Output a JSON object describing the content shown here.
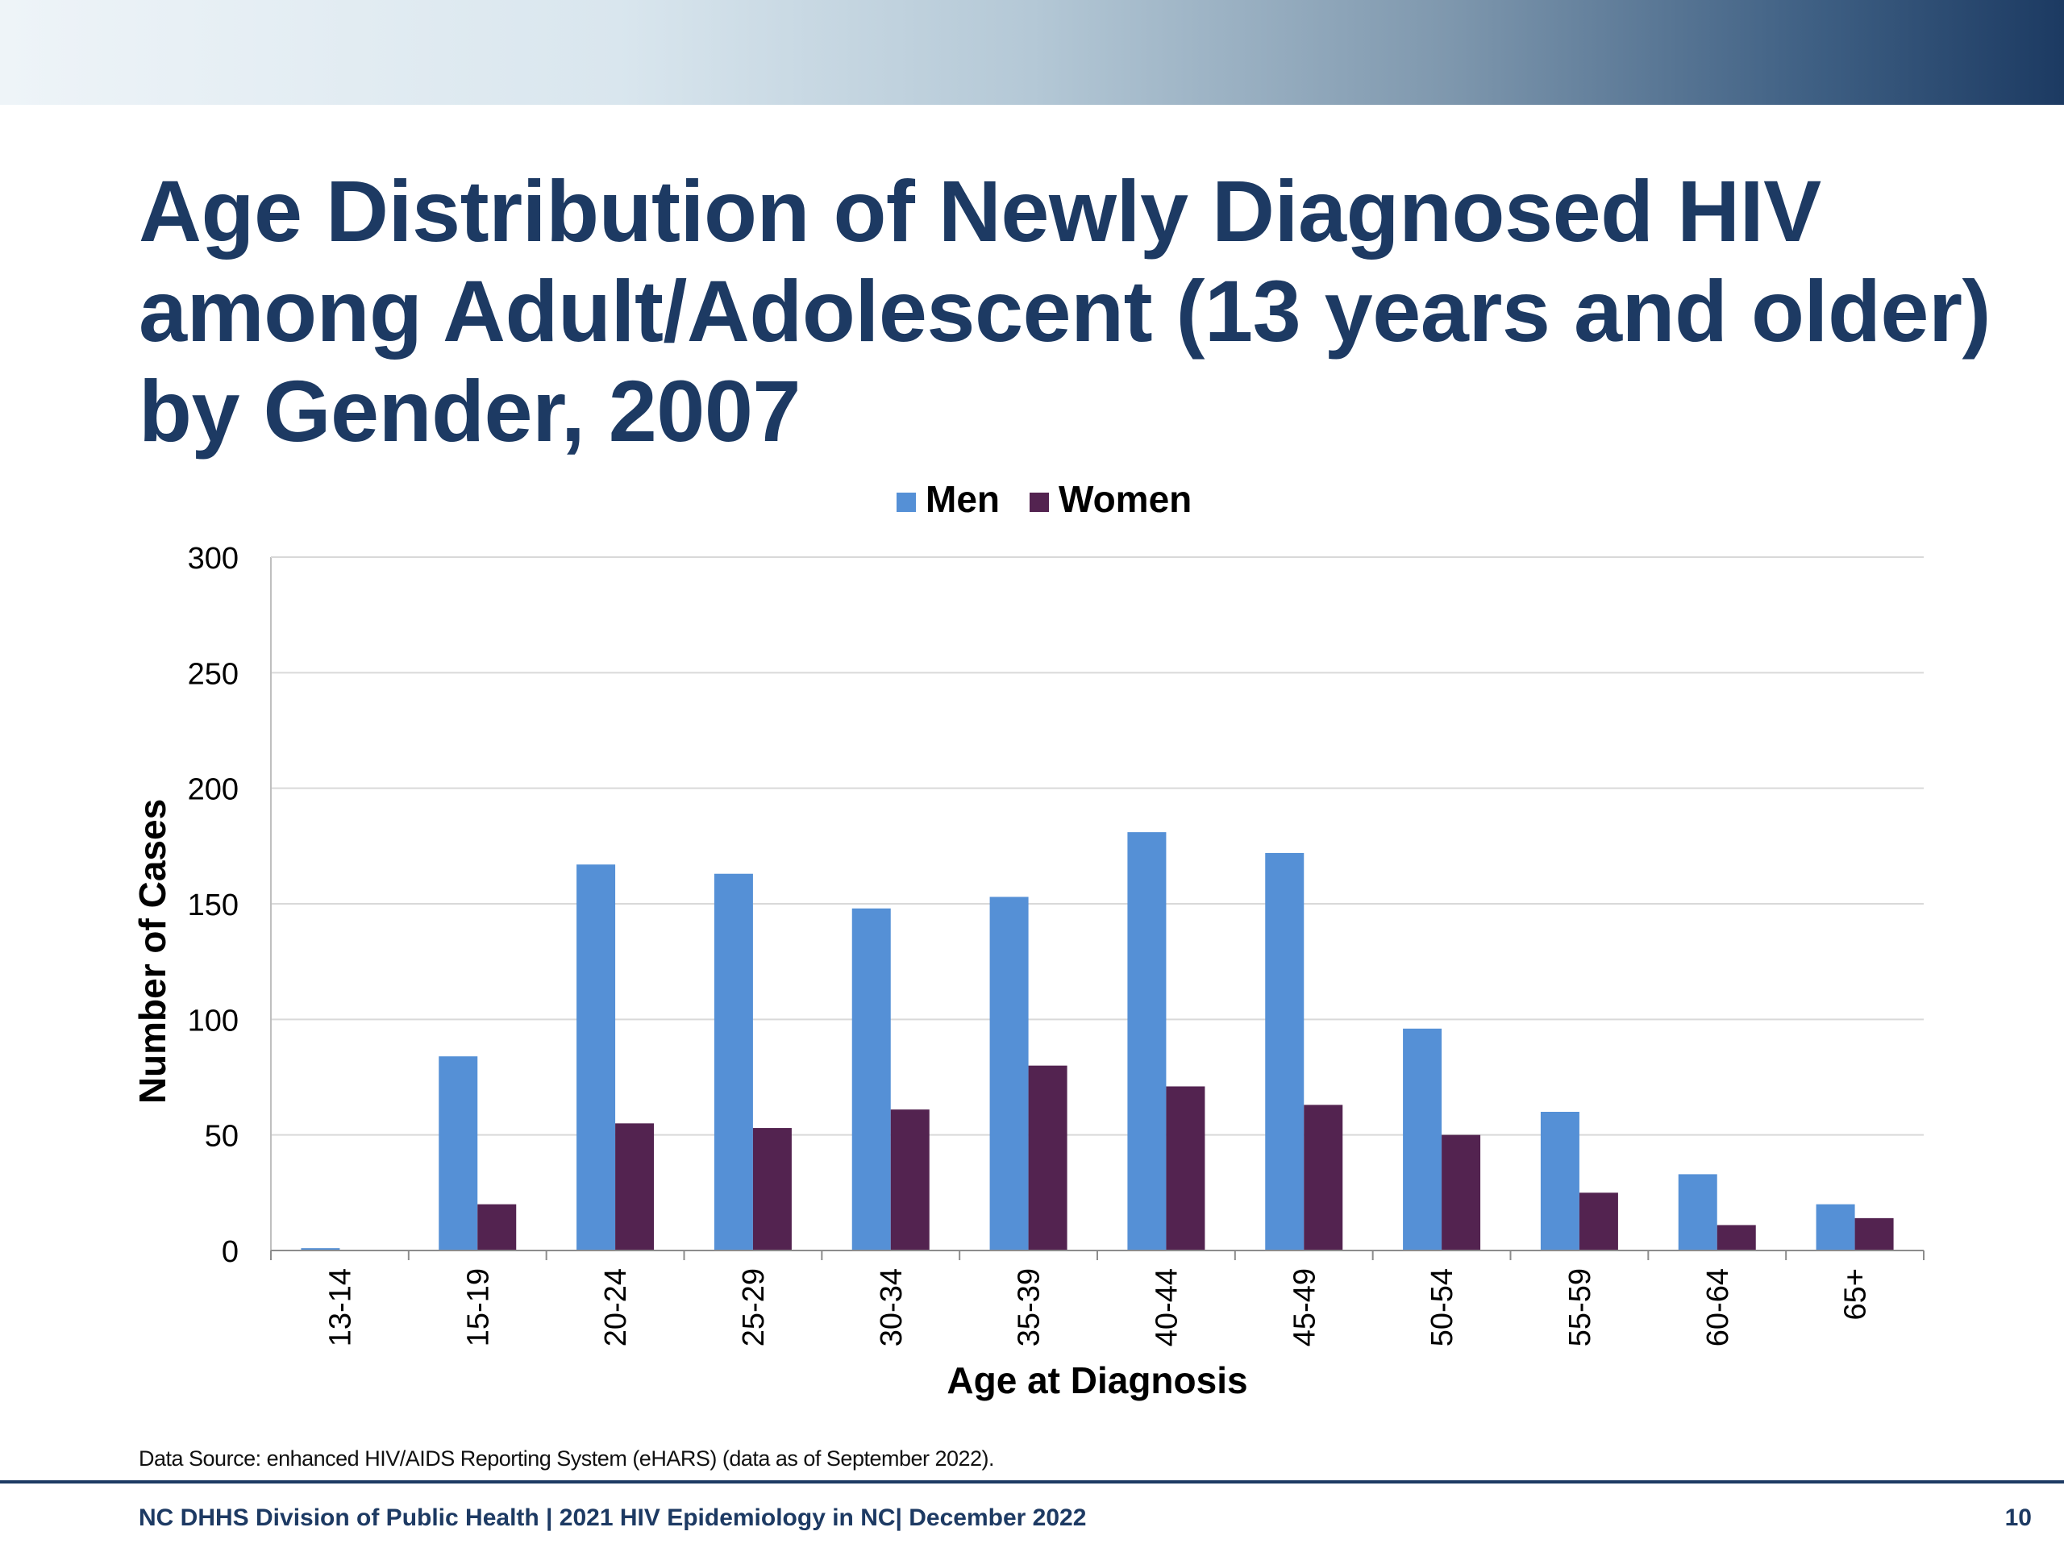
{
  "slide": {
    "title": "Age Distribution of Newly Diagnosed HIV among Adult/Adolescent (13 years and older) by Gender, 2007",
    "source_note": "Data Source: enhanced HIV/AIDS Reporting System (eHARS) (data as of September 2022).",
    "footer_text": "NC DHHS Division of Public Health | 2021 HIV Epidemiology in NC| December 2022",
    "page_number": "10",
    "title_color": "#1d3a63"
  },
  "chart_data": {
    "type": "bar",
    "title": "",
    "xlabel": "Age at Diagnosis",
    "ylabel": "Number of Cases",
    "ylim": [
      0,
      300
    ],
    "yticks": [
      0,
      50,
      100,
      150,
      200,
      250,
      300
    ],
    "grid": true,
    "legend_position": "top-center",
    "categories": [
      "13-14",
      "15-19",
      "20-24",
      "25-29",
      "30-34",
      "35-39",
      "40-44",
      "45-49",
      "50-54",
      "55-59",
      "60-64",
      "65+"
    ],
    "series": [
      {
        "name": "Men",
        "color": "#5590d6",
        "values": [
          1,
          84,
          167,
          163,
          148,
          153,
          181,
          172,
          96,
          60,
          33,
          20
        ]
      },
      {
        "name": "Women",
        "color": "#532350",
        "values": [
          0,
          20,
          55,
          53,
          61,
          80,
          71,
          63,
          50,
          25,
          11,
          14
        ]
      }
    ]
  }
}
